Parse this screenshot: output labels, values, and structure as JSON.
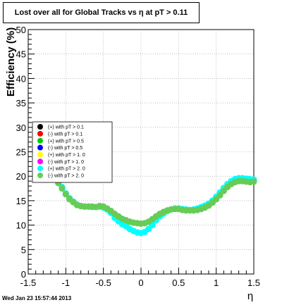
{
  "timestamp": "Wed Jan 23 15:57:44 2013",
  "chart_data": {
    "type": "scatter",
    "title": "Lost over all for Global Tracks vs η at pT > 0.11",
    "xlabel": "η",
    "ylabel": "Efficiency (%)",
    "xlim": [
      -1.5,
      1.5
    ],
    "ylim": [
      0,
      50
    ],
    "xticks": [
      -1.5,
      -1,
      -0.5,
      0,
      0.5,
      1,
      1.5
    ],
    "xtick_labels": [
      "-1.5",
      "-1",
      "-0.5",
      "0",
      "0.5",
      "1",
      "1.5"
    ],
    "yticks": [
      0,
      5,
      10,
      15,
      20,
      25,
      30,
      35,
      40,
      45,
      50
    ],
    "ytick_labels": [
      "0",
      "5",
      "10",
      "15",
      "20",
      "25",
      "30",
      "35",
      "40",
      "45",
      "50"
    ],
    "grid": true,
    "legend_position": "left",
    "series": [
      {
        "name": "(+) with pT > 0.1",
        "color": "#000000",
        "x": [],
        "y": []
      },
      {
        "name": "(-) with pT > 0.1",
        "color": "#ff0000",
        "x": [],
        "y": []
      },
      {
        "name": "(+) with pT > 0.5",
        "color": "#00cc00",
        "x": [],
        "y": []
      },
      {
        "name": "(-) with pT > 0.5",
        "color": "#0000ff",
        "x": [],
        "y": []
      },
      {
        "name": "(+) with pT > 1. 0",
        "color": "#ffff00",
        "x": [],
        "y": []
      },
      {
        "name": "(-) with pT > 1. 0",
        "color": "#ff00ff",
        "x": [],
        "y": []
      },
      {
        "name": "(+) with pT > 2. 0",
        "color": "#00ffff",
        "x": [
          -1.1,
          -1.05,
          -1.0,
          -0.95,
          -0.9,
          -0.85,
          -0.8,
          -0.75,
          -0.7,
          -0.65,
          -0.6,
          -0.55,
          -0.5,
          -0.45,
          -0.4,
          -0.35,
          -0.3,
          -0.25,
          -0.2,
          -0.15,
          -0.1,
          -0.05,
          0.0,
          0.05,
          0.1,
          0.15,
          0.2,
          0.25,
          0.3,
          0.35,
          0.4,
          0.45,
          0.5,
          0.55,
          0.6,
          0.65,
          0.7,
          0.75,
          0.8,
          0.85,
          0.9,
          0.95,
          1.0,
          1.05,
          1.1,
          1.15,
          1.2,
          1.25,
          1.3,
          1.35,
          1.4,
          1.45,
          1.5
        ],
        "y": [
          18.8,
          17.8,
          16.5,
          15.5,
          14.8,
          14.2,
          13.9,
          13.8,
          13.8,
          13.7,
          13.7,
          13.8,
          13.6,
          13.2,
          12.5,
          11.5,
          10.8,
          10.2,
          9.8,
          9.2,
          8.8,
          8.5,
          8.4,
          8.6,
          9.2,
          10.0,
          11.0,
          11.8,
          12.4,
          12.9,
          13.2,
          13.4,
          13.4,
          13.3,
          13.2,
          13.1,
          13.2,
          13.4,
          13.7,
          14.0,
          14.4,
          15.0,
          15.8,
          16.7,
          17.6,
          18.4,
          19.0,
          19.4,
          19.6,
          19.6,
          19.5,
          19.4,
          19.3
        ]
      },
      {
        "name": "(-) with pT > 2. 0",
        "color": "#66cc55",
        "x": [
          -1.1,
          -1.05,
          -1.0,
          -0.95,
          -0.9,
          -0.85,
          -0.8,
          -0.75,
          -0.7,
          -0.65,
          -0.6,
          -0.55,
          -0.5,
          -0.45,
          -0.4,
          -0.35,
          -0.3,
          -0.25,
          -0.2,
          -0.15,
          -0.1,
          -0.05,
          0.0,
          0.05,
          0.1,
          0.15,
          0.2,
          0.25,
          0.3,
          0.35,
          0.4,
          0.45,
          0.5,
          0.55,
          0.6,
          0.65,
          0.7,
          0.75,
          0.8,
          0.85,
          0.9,
          0.95,
          1.0,
          1.05,
          1.1,
          1.15,
          1.2,
          1.25,
          1.3,
          1.35,
          1.4,
          1.45,
          1.5
        ],
        "y": [
          18.6,
          17.5,
          16.3,
          15.3,
          14.7,
          14.1,
          13.9,
          13.8,
          13.8,
          13.8,
          13.7,
          13.9,
          13.8,
          13.4,
          12.9,
          12.3,
          11.8,
          11.3,
          11.0,
          10.7,
          10.5,
          10.4,
          10.3,
          10.4,
          10.7,
          11.2,
          11.8,
          12.3,
          12.7,
          13.0,
          13.2,
          13.3,
          13.3,
          13.1,
          13.0,
          13.0,
          13.0,
          13.1,
          13.3,
          13.6,
          14.0,
          14.6,
          15.3,
          16.1,
          17.0,
          17.8,
          18.4,
          18.8,
          19.0,
          19.0,
          18.9,
          18.8,
          18.9
        ]
      }
    ]
  }
}
